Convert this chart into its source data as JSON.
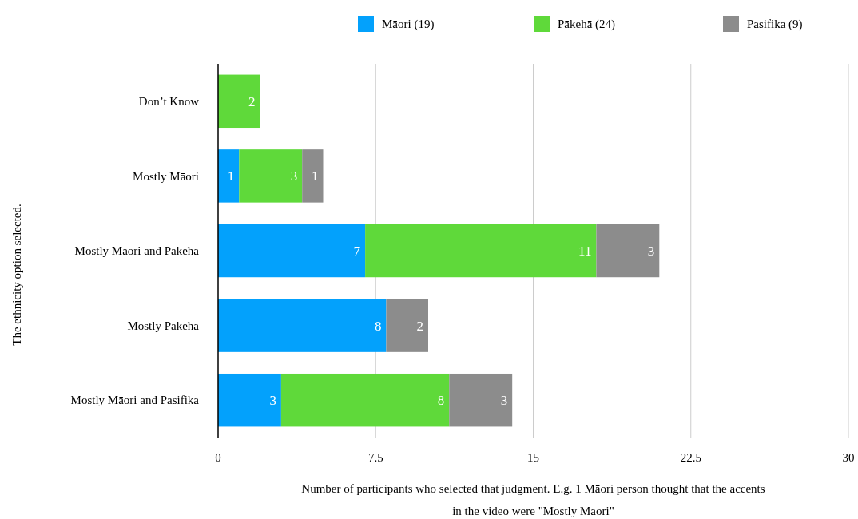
{
  "chart_data": {
    "type": "bar",
    "orientation": "horizontal",
    "stacked": true,
    "categories": [
      "Don’t Know",
      "Mostly Māori",
      "Mostly Māori and Pākehā",
      "Mostly Pākehā",
      "Mostly Māori and Pasifika"
    ],
    "series": [
      {
        "name": "Māori (19)",
        "color": "#03a1fc",
        "values": [
          null,
          1,
          7,
          8,
          3
        ]
      },
      {
        "name": "Pākehā (24)",
        "color": "#5fd93a",
        "values": [
          2,
          3,
          11,
          null,
          8
        ]
      },
      {
        "name": "Pasifika (9)",
        "color": "#8c8c8c",
        "values": [
          null,
          1,
          3,
          2,
          3
        ]
      }
    ],
    "xlim": [
      0,
      30
    ],
    "xticks": [
      0,
      7.5,
      15,
      22.5,
      30
    ],
    "grid": "x",
    "legend": "top",
    "data_labels": true,
    "xlabel": "Number of participants who selected that judgment. E.g. 1 Māori person thought that the accents in the video were \"Mostly Maori\"",
    "ylabel": "The ethnicity option selected."
  }
}
